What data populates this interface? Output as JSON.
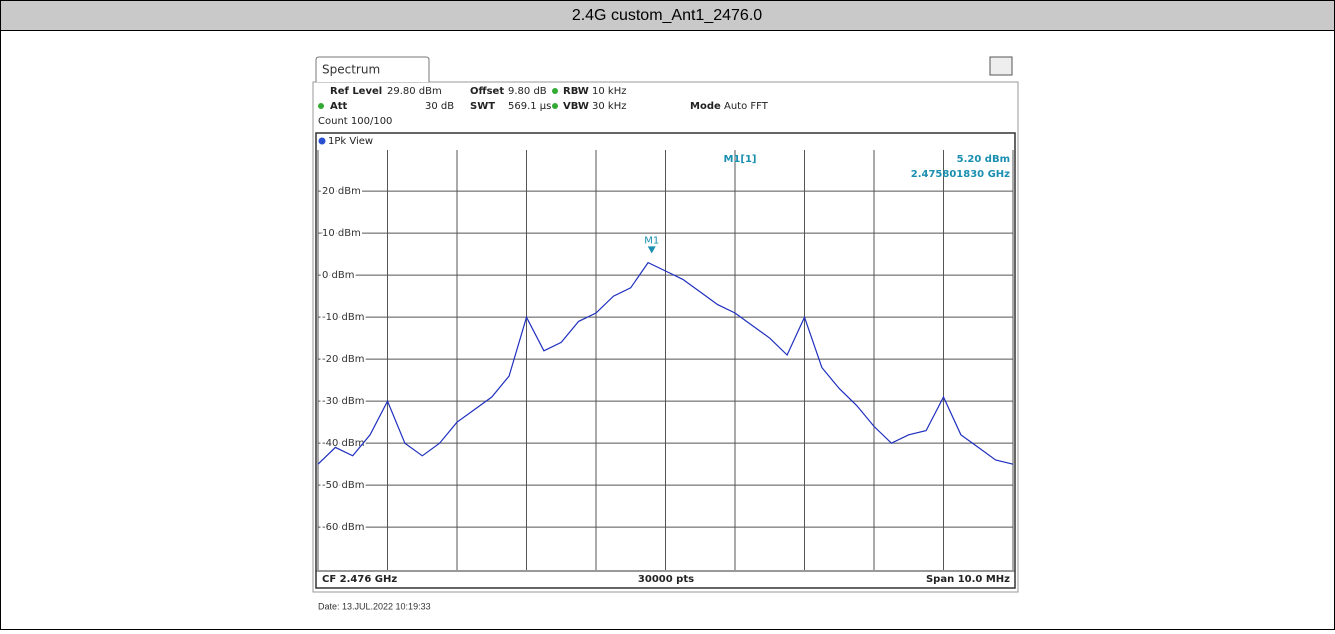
{
  "header": {
    "title": "2.4G custom_Ant1_2476.0"
  },
  "instrument": {
    "tab": "Spectrum",
    "settings": {
      "ref_level_label": "Ref Level",
      "ref_level": "29.80 dBm",
      "offset_label": "Offset",
      "offset": "9.80 dB",
      "rbw_label": "RBW",
      "rbw": "10 kHz",
      "att_label": "Att",
      "att": "30 dB",
      "swt_label": "SWT",
      "swt": "569.1 µs",
      "vbw_label": "VBW",
      "vbw": "30 kHz",
      "mode_label": "Mode",
      "mode": "Auto FFT",
      "count": "Count 100/100"
    },
    "view": "1Pk View",
    "footer": {
      "left": "CF 2.476 GHz",
      "center": "30000 pts",
      "right": "Span 10.0 MHz"
    },
    "date": "Date: 13.JUL.2022  10:19:33"
  },
  "chart": {
    "type": "line",
    "xlim": [
      2.471,
      2.481
    ],
    "xticks": [
      2.471,
      2.472,
      2.473,
      2.474,
      2.475,
      2.476,
      2.477,
      2.478,
      2.479,
      2.48,
      2.481
    ],
    "ylim": [
      -70.2,
      29.8
    ],
    "yticks": [
      {
        "value": 20,
        "label": "20 dBm"
      },
      {
        "value": 10,
        "label": "10 dBm"
      },
      {
        "value": 0,
        "label": "0 dBm"
      },
      {
        "value": -10,
        "label": "-10 dBm"
      },
      {
        "value": -20,
        "label": "-20 dBm"
      },
      {
        "value": -30,
        "label": "-30 dBm"
      },
      {
        "value": -40,
        "label": "-40 dBm"
      },
      {
        "value": -50,
        "label": "-50 dBm"
      },
      {
        "value": -60,
        "label": "-60 dBm"
      }
    ],
    "grid": true,
    "trace": {
      "color": "#1f2fbf",
      "x": [
        2.471,
        2.47125,
        2.4715,
        2.47175,
        2.472,
        2.47225,
        2.4725,
        2.47275,
        2.473,
        2.47325,
        2.4735,
        2.47375,
        2.474,
        2.47425,
        2.4745,
        2.47475,
        2.475,
        2.47525,
        2.4755,
        2.47575,
        2.476,
        2.47625,
        2.4765,
        2.47675,
        2.477,
        2.47725,
        2.4775,
        2.47775,
        2.478,
        2.47825,
        2.4785,
        2.47875,
        2.479,
        2.47925,
        2.4795,
        2.47975,
        2.48,
        2.48025,
        2.4805,
        2.48075,
        2.481
      ],
      "values": [
        -45,
        -41,
        -43,
        -38,
        -30,
        -40,
        -43,
        -40,
        -35,
        -32,
        -29,
        -24,
        -10,
        -18,
        -16,
        -11,
        -9,
        -5,
        -3,
        3,
        1,
        -1,
        -4,
        -7,
        -9,
        -12,
        -15,
        -19,
        -10,
        -22,
        -27,
        -31,
        -36,
        -40,
        -38,
        -37,
        -29,
        -38,
        -41,
        -44,
        -45
      ]
    },
    "marker": {
      "name": "M1",
      "label": "M1[1]",
      "x": 2.47580183,
      "x_label": "2.475801830 GHz",
      "y": 5.2,
      "y_label": "5.20 dBm",
      "color": "#1a8fb0"
    }
  }
}
